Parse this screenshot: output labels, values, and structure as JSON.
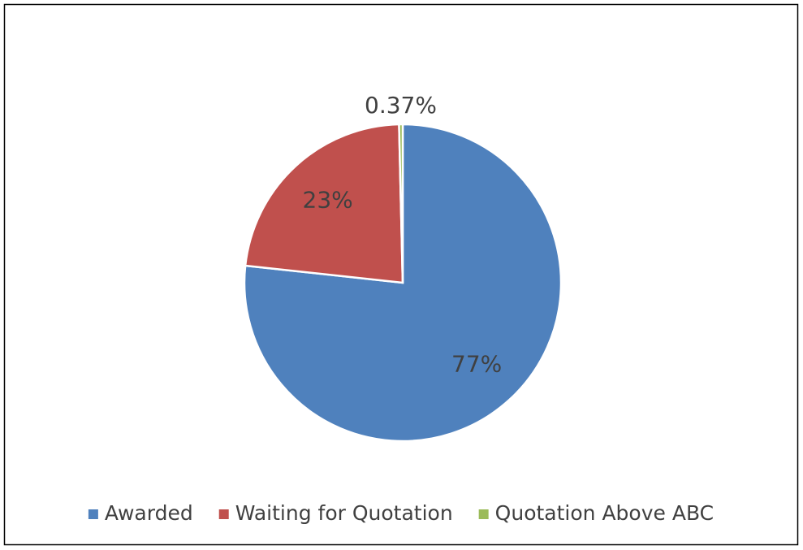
{
  "chart_data": {
    "type": "pie",
    "series": [
      {
        "name": "Awarded",
        "color": "#4f81bd",
        "values": [
          77
        ],
        "value_labels": [
          "77%"
        ]
      },
      {
        "name": "Waiting for Quotation",
        "color": "#c0504d",
        "values": [
          23
        ],
        "value_labels": [
          "23%"
        ]
      },
      {
        "name": "Quotation Above ABC",
        "color": "#9bbb59",
        "values": [
          0.37
        ],
        "value_labels": [
          "0.37%"
        ]
      }
    ],
    "legend": "bottom"
  }
}
